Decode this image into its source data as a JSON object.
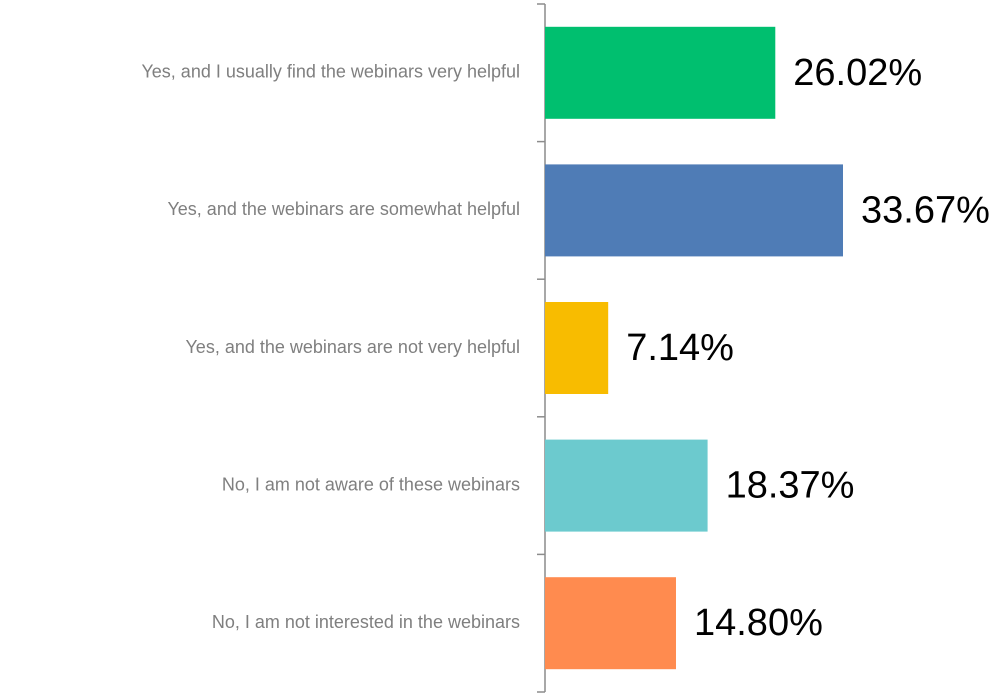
{
  "chart_data": {
    "type": "barh",
    "categories": [
      "Yes, and I usually find the webinars very helpful",
      "Yes, and the webinars are somewhat helpful",
      "Yes, and the webinars are not very helpful",
      "No, I am not aware of these webinars",
      "No, I am not interested in the webinars"
    ],
    "values": [
      26.02,
      33.67,
      7.14,
      18.37,
      14.8
    ],
    "value_labels": [
      "26.02%",
      "33.67%",
      "7.14%",
      "18.37%",
      "14.80%"
    ],
    "colors": [
      "#00bf6f",
      "#4f7cb6",
      "#f8bc00",
      "#6ccace",
      "#ff8b4f"
    ]
  }
}
